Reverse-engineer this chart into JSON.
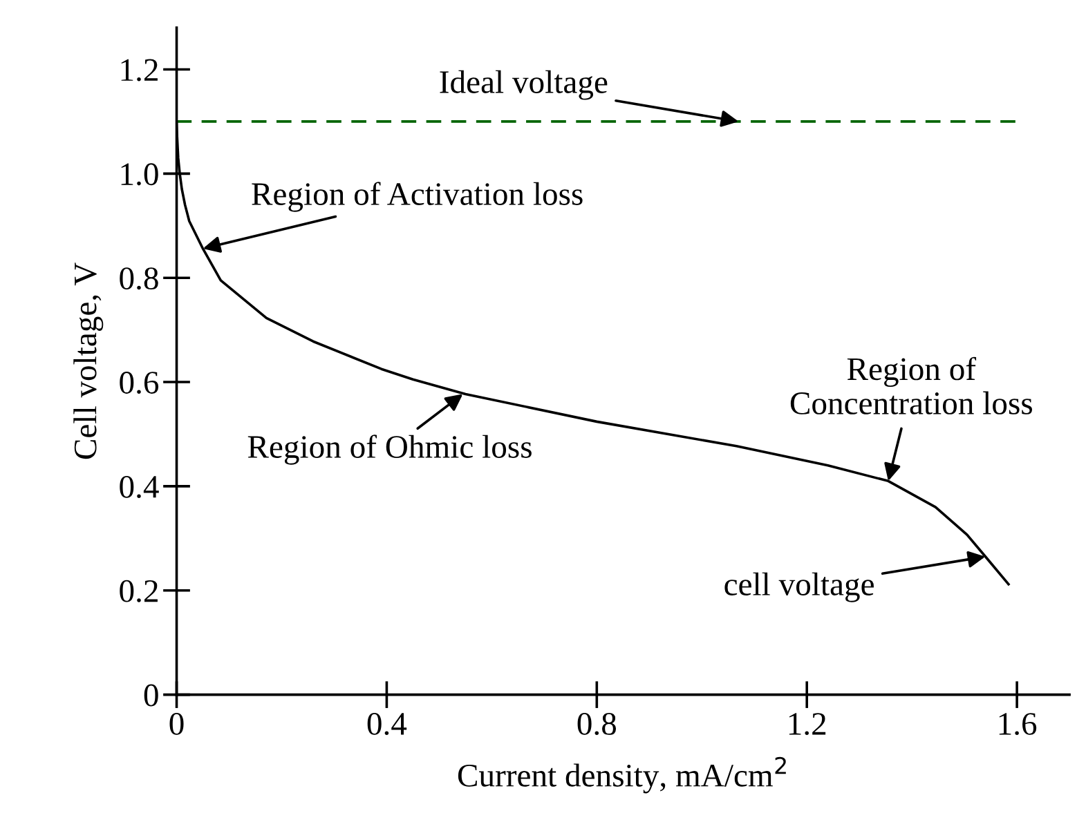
{
  "chart_data": {
    "type": "line",
    "xlabel": "Current density, mA/cm$^{2}$",
    "ylabel": "Cell voltage, V",
    "xlim": [
      0,
      1.7
    ],
    "ylim": [
      0,
      1.28
    ],
    "xticks": [
      0,
      0.4,
      0.8,
      1.2,
      1.6
    ],
    "yticks": [
      0,
      0.2,
      0.4,
      0.6,
      0.8,
      {
        "value": 1.0,
        "label": "1.0"
      },
      1.2
    ],
    "grid": false,
    "legend": false,
    "marker": "none",
    "series": [
      {
        "color": "#000000",
        "line_style": "solid",
        "x": [
          0,
          0.001,
          0.003,
          0.006,
          0.01,
          0.016,
          0.024,
          0.05,
          0.084,
          0.171,
          0.26,
          0.39,
          0.45,
          0.55,
          0.8,
          1.066,
          1.24,
          1.355,
          1.445,
          1.505,
          1.54,
          1.584
        ],
        "values": [
          1.1,
          1.07,
          1.03,
          1.0,
          0.97,
          0.94,
          0.909,
          0.856,
          0.795,
          0.723,
          0.678,
          0.625,
          0.605,
          0.577,
          0.524,
          0.477,
          0.44,
          0.41,
          0.36,
          0.307,
          0.265,
          0.212
        ]
      },
      {
        "color": "#006400",
        "line_style": "dashed",
        "x": [
          0,
          1.6
        ],
        "values": [
          1.1,
          1.1
        ]
      }
    ],
    "annotations": [
      {
        "text": "Ideal voltage",
        "x": 1.07,
        "y": 1.1
      },
      {
        "text": "Region of Activation loss",
        "x": 0.05,
        "y": 0.856
      },
      {
        "text": "Region of Ohmic loss",
        "x": 0.545,
        "y": 0.577
      },
      {
        "text": "Region of\nConcentration loss",
        "x": 1.355,
        "y": 0.41
      },
      {
        "text": "cell voltage",
        "x": 1.54,
        "y": 0.265
      }
    ]
  }
}
